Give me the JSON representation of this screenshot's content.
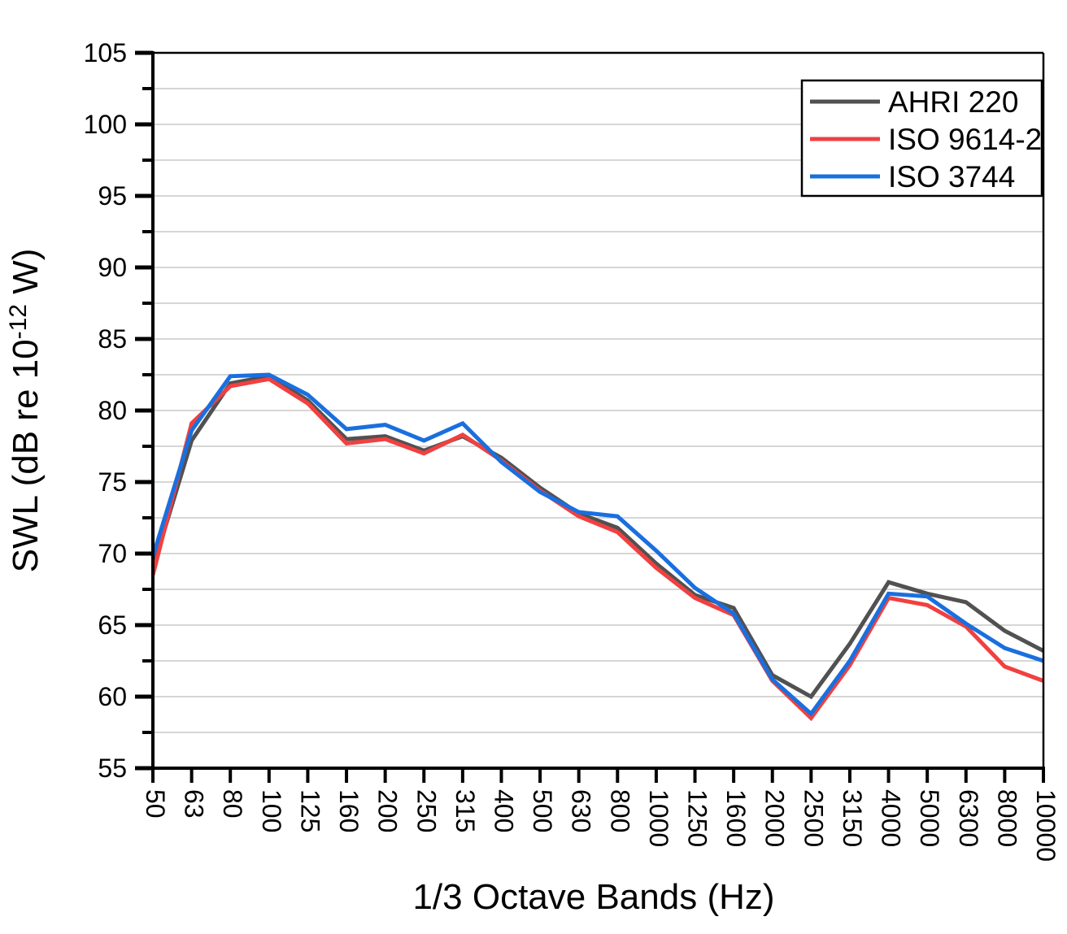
{
  "chart_data": {
    "type": "line",
    "title": "",
    "xlabel": "1/3 Octave Bands (Hz)",
    "ylabel": {
      "plain": "SWL (dB re 10-12 W)",
      "pre": "SWL (dB re 10",
      "sup": "-12",
      "post": " W)"
    },
    "categories": [
      "50",
      "63",
      "80",
      "100",
      "125",
      "160",
      "200",
      "250",
      "315",
      "400",
      "500",
      "630",
      "800",
      "1000",
      "1250",
      "1600",
      "2000",
      "2500",
      "3150",
      "4000",
      "5000",
      "6300",
      "8000",
      "10000"
    ],
    "series": [
      {
        "name": "AHRI 220",
        "color": "#515151",
        "values": [
          69.0,
          77.9,
          81.9,
          82.4,
          80.7,
          78.0,
          78.2,
          77.2,
          78.2,
          76.7,
          74.6,
          72.8,
          71.8,
          69.3,
          67.1,
          66.2,
          61.5,
          60.0,
          63.7,
          68.0,
          67.2,
          66.6,
          64.6,
          63.2
        ]
      },
      {
        "name": "ISO 9614-2",
        "color": "#F14040",
        "values": [
          68.5,
          79.1,
          81.7,
          82.2,
          80.5,
          77.7,
          78.0,
          77.0,
          78.3,
          76.5,
          74.4,
          72.6,
          71.5,
          69.0,
          66.9,
          65.7,
          61.1,
          58.5,
          62.2,
          66.9,
          66.4,
          64.9,
          62.1,
          61.1
        ]
      },
      {
        "name": "ISO 3744",
        "color": "#1A6FDF",
        "values": [
          69.8,
          78.6,
          82.4,
          82.5,
          81.1,
          78.7,
          79.0,
          77.9,
          79.1,
          76.4,
          74.3,
          72.9,
          72.6,
          70.2,
          67.6,
          65.8,
          61.2,
          58.8,
          62.5,
          67.2,
          67.0,
          65.1,
          63.4,
          62.5
        ]
      }
    ],
    "ylim": [
      55,
      105
    ],
    "y_major_step": 5,
    "y_minor_step": 2.5,
    "grid": true,
    "legend": {
      "position": "top-right",
      "entries": [
        "AHRI 220",
        "ISO 9614-2",
        "ISO 3744"
      ]
    },
    "axis_color": "#000000",
    "grid_color": "#c9c9c9"
  }
}
